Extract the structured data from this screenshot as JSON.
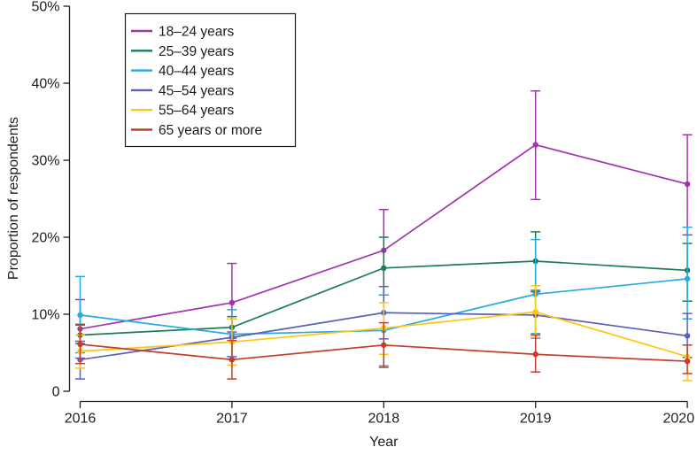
{
  "figure": {
    "background": "#ffffff",
    "text_color": "#1d1d1b",
    "axis_color": "#1d1d1b",
    "legend_border_color": "#1d1d1b"
  },
  "chart_data": {
    "type": "line",
    "title": "",
    "xlabel": "Year",
    "ylabel": "Proportion of respondents",
    "x": [
      2016,
      2017,
      2018,
      2019,
      2020
    ],
    "ylim": [
      0,
      50
    ],
    "y_ticks": [
      0,
      10,
      20,
      30,
      40,
      50
    ],
    "y_tick_labels": [
      "0",
      "10%",
      "20%",
      "30%",
      "40%",
      "50%"
    ],
    "grid": false,
    "error_bars": true,
    "legend_position": "upper-left-inside",
    "series": [
      {
        "name": "18–24 years",
        "color": "#a233ae",
        "values": [
          8.1,
          11.5,
          18.3,
          32.0,
          26.9
        ],
        "ci_low": [
          4.3,
          7.7,
          12.5,
          24.9,
          20.3
        ],
        "ci_high": [
          11.9,
          16.6,
          23.6,
          39.0,
          33.3
        ]
      },
      {
        "name": "25–39 years",
        "color": "#1e7b59",
        "values": [
          7.3,
          8.3,
          16.0,
          16.9,
          15.7
        ],
        "ci_low": [
          6.2,
          6.9,
          12.5,
          13.1,
          11.7
        ],
        "ci_high": [
          8.7,
          9.7,
          20.0,
          20.7,
          19.2
        ]
      },
      {
        "name": "40–44 years",
        "color": "#27aae1",
        "values": [
          9.9,
          7.4,
          7.9,
          12.6,
          14.6
        ],
        "ci_low": [
          5.0,
          4.2,
          3.3,
          7.5,
          9.4
        ],
        "ci_high": [
          14.9,
          10.6,
          12.5,
          19.7,
          21.3
        ]
      },
      {
        "name": "45–54 years",
        "color": "#5a60b6",
        "values": [
          4.1,
          7.0,
          10.2,
          9.9,
          7.2
        ],
        "ci_low": [
          1.6,
          4.5,
          6.8,
          6.9,
          4.4
        ],
        "ci_high": [
          6.5,
          9.4,
          13.6,
          12.9,
          10.1
        ]
      },
      {
        "name": "55–64 years",
        "color": "#fec613",
        "values": [
          5.2,
          6.4,
          8.2,
          10.3,
          4.5
        ],
        "ci_low": [
          3.0,
          3.4,
          4.8,
          7.0,
          1.4
        ],
        "ci_high": [
          7.3,
          9.4,
          11.5,
          13.7,
          6.0
        ]
      },
      {
        "name": "65 years or more",
        "color": "#c33d2b",
        "values": [
          6.1,
          4.1,
          6.0,
          4.8,
          3.9
        ],
        "ci_low": [
          3.6,
          1.6,
          3.1,
          2.5,
          2.3
        ],
        "ci_high": [
          8.6,
          6.6,
          8.9,
          7.3,
          6.0
        ]
      }
    ]
  }
}
